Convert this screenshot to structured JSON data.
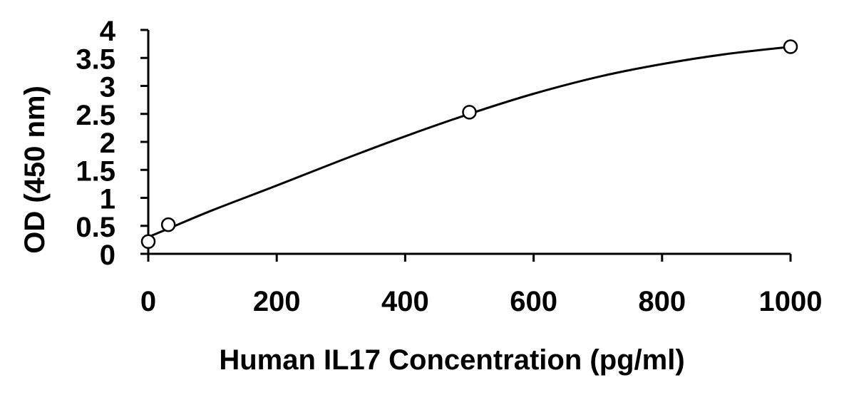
{
  "chart_data": {
    "type": "scatter",
    "title": "",
    "xlabel": "Human IL17 Concentration (pg/ml)",
    "ylabel": "OD (450 nm)",
    "xlim": [
      0,
      1000
    ],
    "ylim": [
      0,
      4
    ],
    "xticks": [
      0,
      200,
      400,
      600,
      800,
      1000
    ],
    "yticks": [
      0,
      0.5,
      1,
      1.5,
      2,
      2.5,
      3,
      3.5,
      4
    ],
    "ytick_labels": [
      "0",
      "0.5",
      "1",
      "1.5",
      "2",
      "2.5",
      "3",
      "3.5",
      "4"
    ],
    "grid": false,
    "legend": "none",
    "series": [
      {
        "marker": "open-circle",
        "color": "#000000",
        "x": [
          0,
          31.25,
          500,
          1000
        ],
        "y": [
          0.22,
          0.52,
          2.53,
          3.7
        ]
      }
    ],
    "fit_curve": {
      "style": "smooth",
      "color": "#000000",
      "x": [
        0,
        31.25,
        100,
        200,
        300,
        400,
        500,
        600,
        700,
        800,
        900,
        1000
      ],
      "y": [
        0.3,
        0.45,
        0.78,
        1.22,
        1.67,
        2.1,
        2.5,
        2.86,
        3.16,
        3.39,
        3.57,
        3.7
      ]
    }
  }
}
